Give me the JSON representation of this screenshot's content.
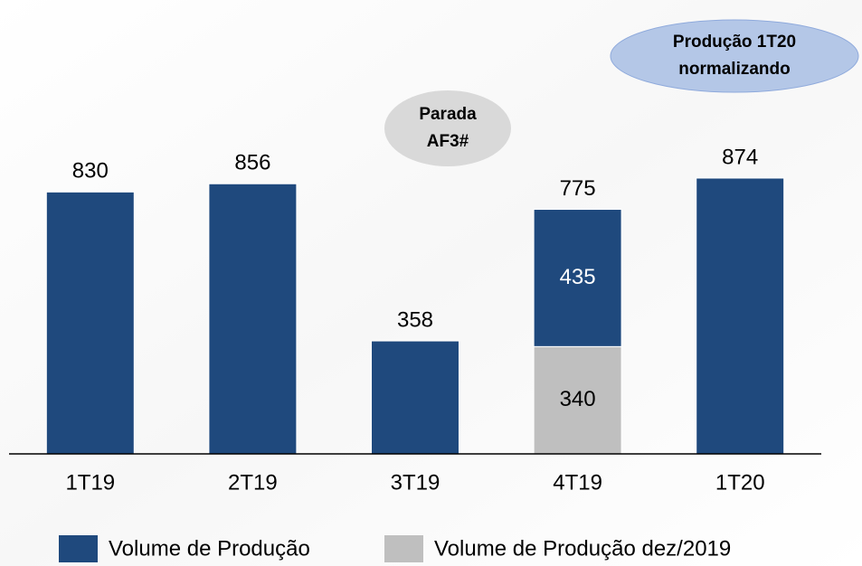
{
  "chart_data": {
    "type": "stacked_bar",
    "categories": [
      "1T19",
      "2T19",
      "3T19",
      "4T19",
      "1T20"
    ],
    "series": [
      {
        "name": "Volume de Produção dez/2019",
        "color": "#bfbfbf",
        "values": [
          null,
          null,
          null,
          340,
          null
        ]
      },
      {
        "name": "Volume de Produção",
        "color": "#1f497d",
        "values": [
          830,
          856,
          358,
          435,
          874
        ]
      }
    ],
    "legend_order": [
      1,
      0
    ],
    "totals": [
      830,
      856,
      358,
      775,
      874
    ],
    "ylim": [
      0,
      1000
    ],
    "annotations": [
      {
        "lines": [
          "Parada",
          "AF3#"
        ],
        "color": "#d9d9d9"
      },
      {
        "lines": [
          "Produção 1T20",
          "normalizando"
        ],
        "color": "#b4c7e7"
      }
    ]
  }
}
